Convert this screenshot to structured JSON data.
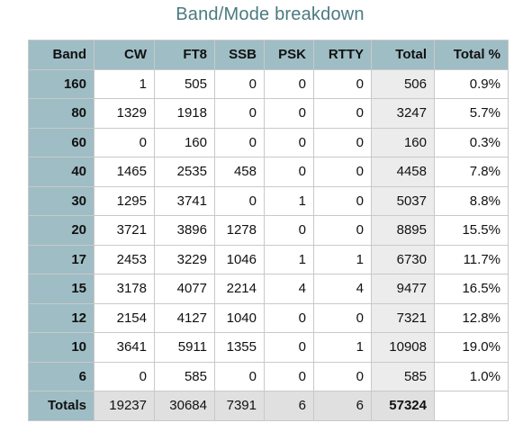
{
  "title": "Band/Mode breakdown",
  "headers": [
    "Band",
    "CW",
    "FT8",
    "SSB",
    "PSK",
    "RTTY",
    "Total",
    "Total %"
  ],
  "rows": [
    [
      "160",
      "1",
      "505",
      "0",
      "0",
      "0",
      "506",
      "0.9%"
    ],
    [
      "80",
      "1329",
      "1918",
      "0",
      "0",
      "0",
      "3247",
      "5.7%"
    ],
    [
      "60",
      "0",
      "160",
      "0",
      "0",
      "0",
      "160",
      "0.3%"
    ],
    [
      "40",
      "1465",
      "2535",
      "458",
      "0",
      "0",
      "4458",
      "7.8%"
    ],
    [
      "30",
      "1295",
      "3741",
      "0",
      "1",
      "0",
      "5037",
      "8.8%"
    ],
    [
      "20",
      "3721",
      "3896",
      "1278",
      "0",
      "0",
      "8895",
      "15.5%"
    ],
    [
      "17",
      "2453",
      "3229",
      "1046",
      "1",
      "1",
      "6730",
      "11.7%"
    ],
    [
      "15",
      "3178",
      "4077",
      "2214",
      "4",
      "4",
      "9477",
      "16.5%"
    ],
    [
      "12",
      "2154",
      "4127",
      "1040",
      "0",
      "0",
      "7321",
      "12.8%"
    ],
    [
      "10",
      "3641",
      "5911",
      "1355",
      "0",
      "1",
      "10908",
      "19.0%"
    ],
    [
      "6",
      "0",
      "585",
      "0",
      "0",
      "0",
      "585",
      "1.0%"
    ]
  ],
  "totals": [
    "Totals",
    "19237",
    "30684",
    "7391",
    "6",
    "6",
    "57324",
    ""
  ]
}
